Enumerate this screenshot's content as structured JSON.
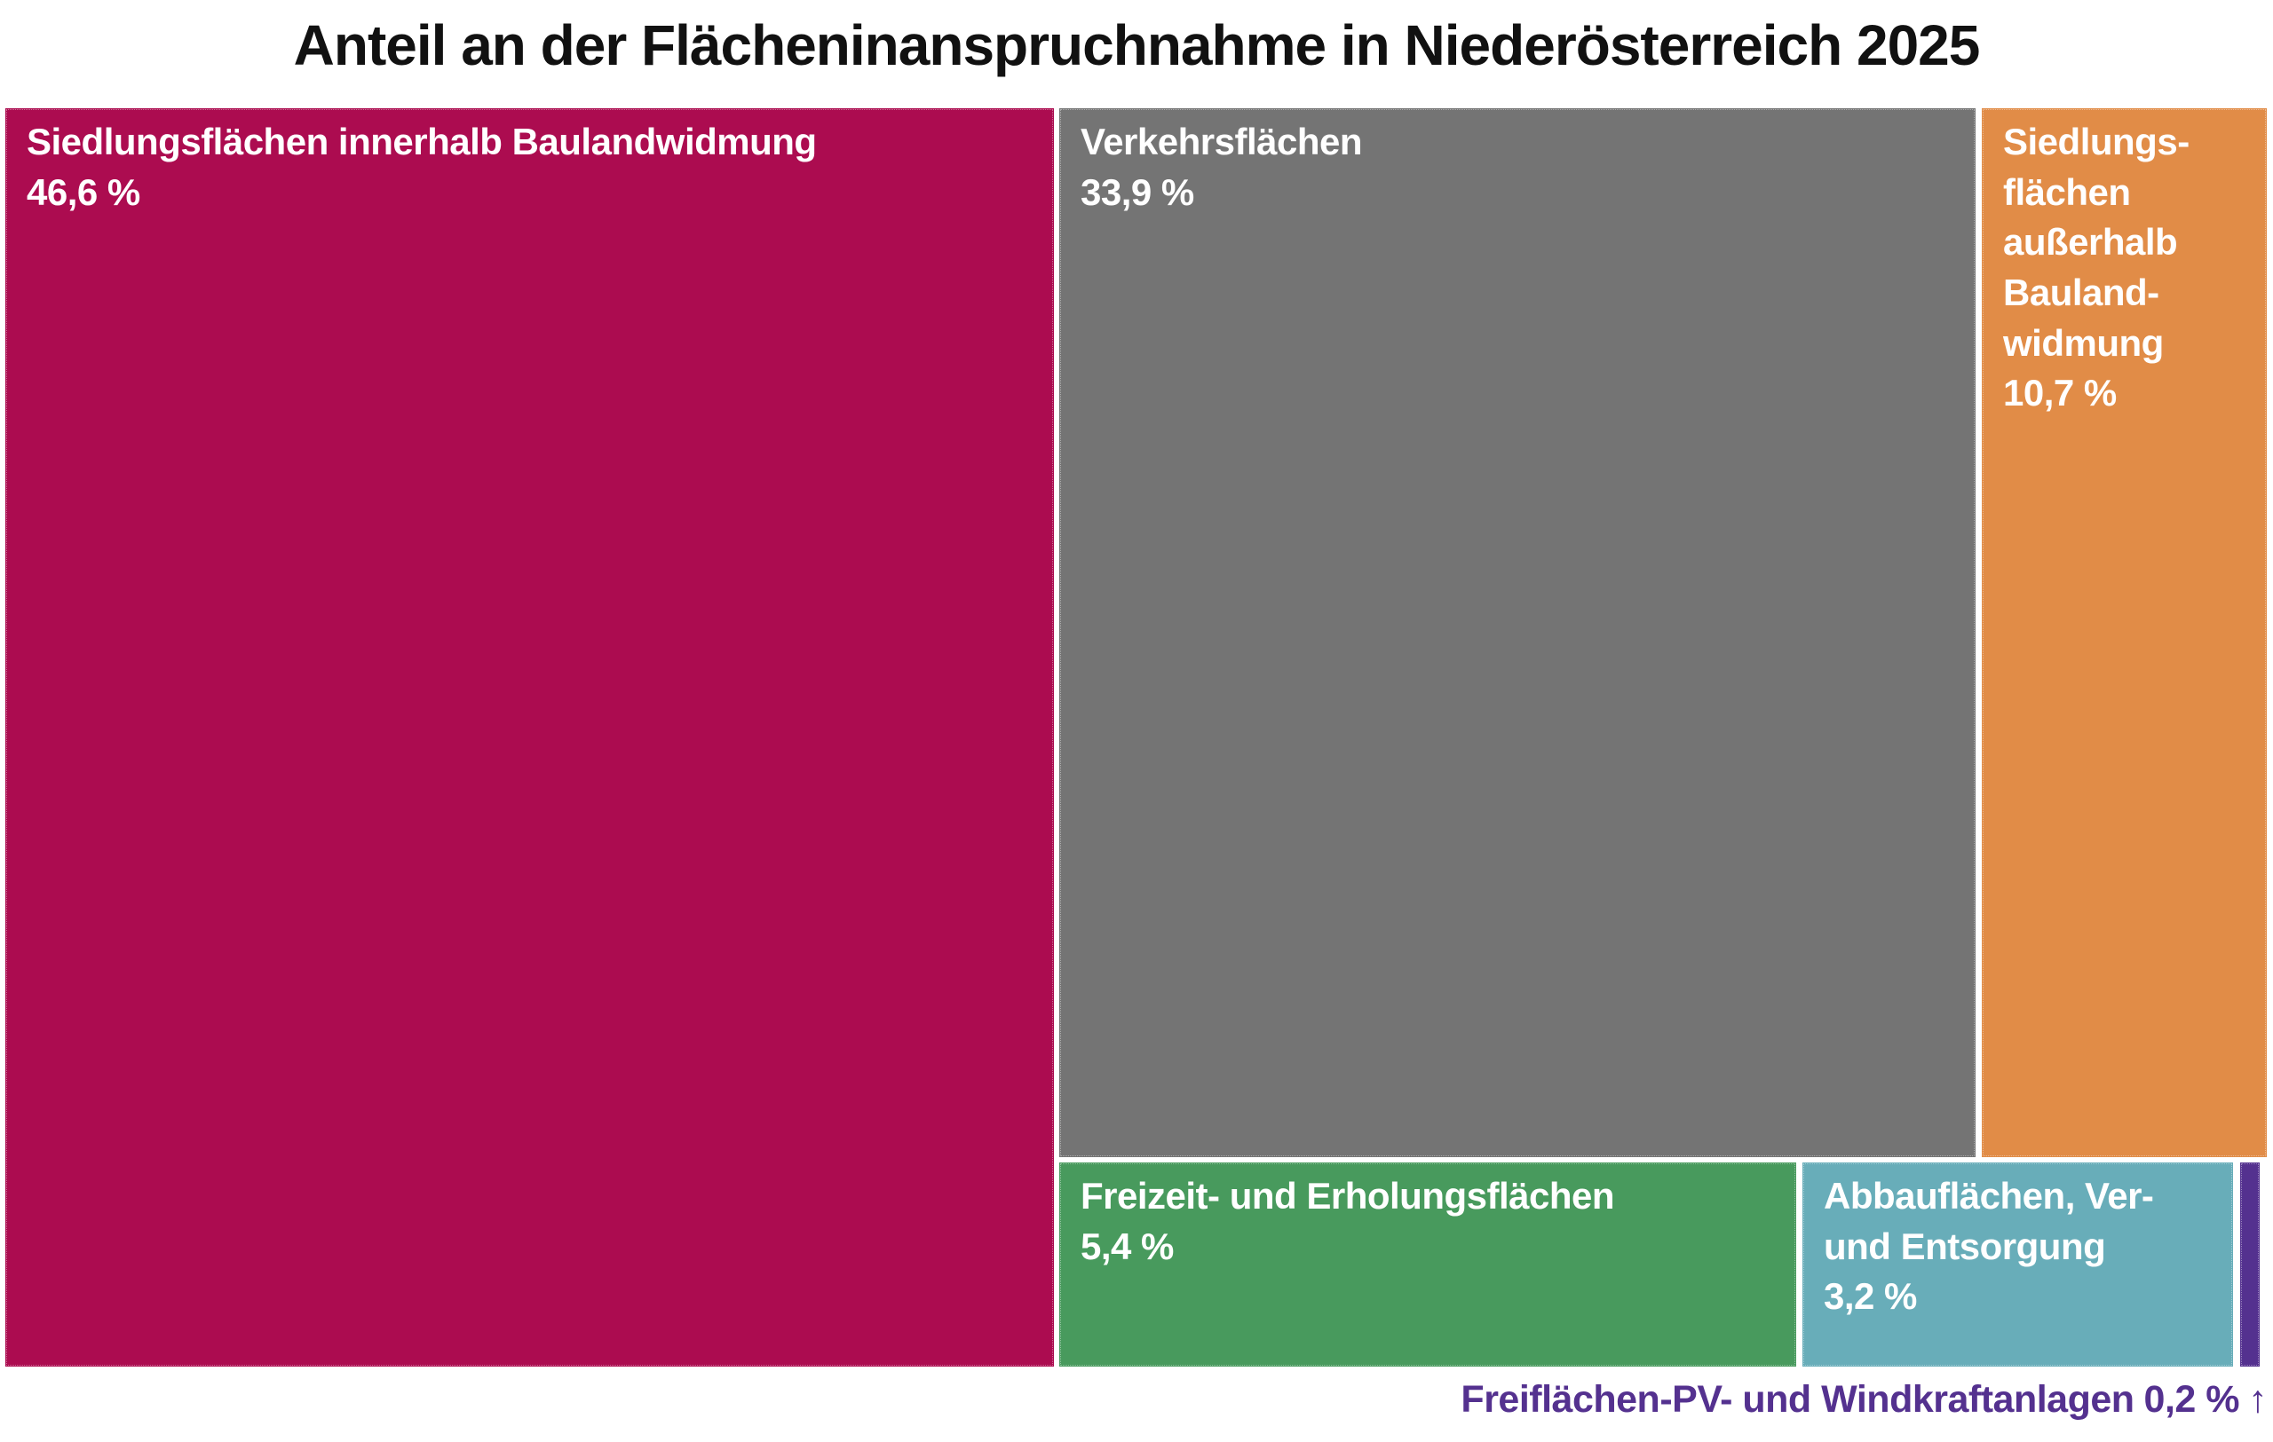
{
  "title": "Anteil an der Flächeninanspruchnahme in Niederösterreich 2025",
  "colors": {
    "title": "#111111",
    "background": "#FFFFFF"
  },
  "chart_data": {
    "type": "treemap",
    "title": "Anteil an der Flächeninanspruchnahme in Niederösterreich 2025",
    "unit": "%",
    "total": 100.0,
    "items": [
      {
        "name": "Siedlungsflächen innerhalb Baulandwidmung",
        "value": 46.6,
        "display_label": "Siedlungsflächen innerhalb Baulandwidmung",
        "display_value": "46,6 %",
        "color": "#AC0C50",
        "text_color": "#FFFFFF"
      },
      {
        "name": "Verkehrsflächen",
        "value": 33.9,
        "display_label": "Verkehrsflächen",
        "display_value": "33,9 %",
        "color": "#747474",
        "text_color": "#FFFFFF"
      },
      {
        "name": "Siedlungsflächen außerhalb Baulandwidmung",
        "value": 10.7,
        "display_label": "Siedlungs-\nflächen\naußerhalb\nBauland-\nwidmung",
        "display_value": "10,7 %",
        "color": "#E18C47",
        "text_color": "#FFFFFF"
      },
      {
        "name": "Freizeit- und Erholungsflächen",
        "value": 5.4,
        "display_label": "Freizeit- und Erholungsflächen",
        "display_value": "5,4 %",
        "color": "#489A5D",
        "text_color": "#FFFFFF"
      },
      {
        "name": "Abbauflächen, Ver- und Entsorgung",
        "value": 3.2,
        "display_label": "Abbauflächen, Ver-\nund Entsorgung",
        "display_value": "3,2 %",
        "color": "#68ADB9",
        "text_color": "#FFFFFF"
      },
      {
        "name": "Freiflächen-PV- und Windkraftanlagen",
        "value": 0.2,
        "display_label": "",
        "display_value": "0,2 %",
        "color": "#54318F",
        "text_color": "#FFFFFF"
      }
    ],
    "caption": {
      "label": "Freiflächen-PV- und Windkraftanlagen",
      "display_value": "0,2 %",
      "arrow": "↑",
      "color": "#54318F"
    }
  }
}
